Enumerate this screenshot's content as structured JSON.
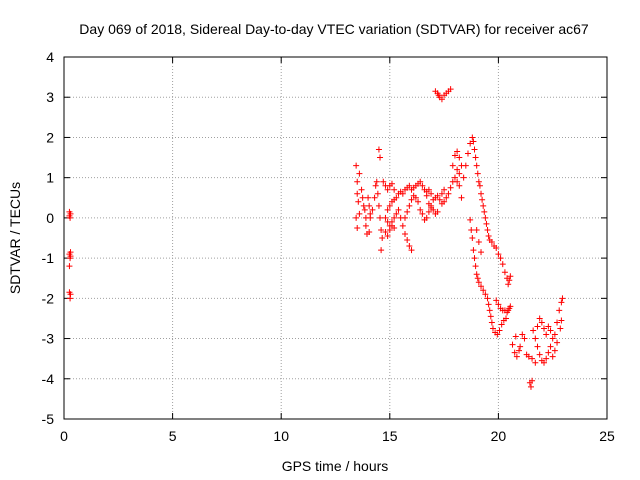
{
  "chart_data": {
    "type": "scatter",
    "title": "Day 069 of 2018, Sidereal Day-to-day VTEC variation (SDTVAR) for receiver ac67",
    "xlabel": "GPS time / hours",
    "ylabel": "SDTVAR / TECUs",
    "xlim": [
      0,
      25
    ],
    "ylim": [
      -5,
      4
    ],
    "xticks": [
      "0",
      "5",
      "10",
      "15",
      "20",
      "25"
    ],
    "yticks": [
      "-5",
      "-4",
      "-3",
      "-2",
      "-1",
      "0",
      "1",
      "2",
      "3",
      "4"
    ],
    "grid": true,
    "marker": "+",
    "color": "#ff0000",
    "series": [
      {
        "points": [
          [
            0.25,
            0.15
          ],
          [
            0.25,
            0.05
          ],
          [
            0.28,
            0.0
          ],
          [
            0.3,
            0.1
          ],
          [
            0.25,
            -0.9
          ],
          [
            0.28,
            -1.0
          ],
          [
            0.3,
            -0.85
          ],
          [
            0.25,
            -1.2
          ],
          [
            0.3,
            -0.95
          ],
          [
            0.25,
            -1.85
          ],
          [
            0.28,
            -2.0
          ],
          [
            0.3,
            -1.9
          ],
          [
            13.45,
            1.3
          ],
          [
            13.5,
            0.9
          ],
          [
            13.5,
            0.6
          ],
          [
            13.55,
            0.4
          ],
          [
            13.6,
            0.1
          ],
          [
            13.45,
            0.0
          ],
          [
            13.5,
            -0.25
          ],
          [
            13.6,
            1.1
          ],
          [
            13.7,
            0.7
          ],
          [
            13.75,
            0.5
          ],
          [
            13.8,
            0.3
          ],
          [
            13.85,
            0.2
          ],
          [
            13.9,
            0.0
          ],
          [
            13.9,
            -0.2
          ],
          [
            14.0,
            0.5
          ],
          [
            14.05,
            0.3
          ],
          [
            14.1,
            0.1
          ],
          [
            13.95,
            -0.4
          ],
          [
            14.05,
            -0.35
          ],
          [
            14.1,
            0.0
          ],
          [
            14.2,
            0.2
          ],
          [
            14.3,
            0.5
          ],
          [
            14.35,
            0.8
          ],
          [
            14.4,
            0.9
          ],
          [
            14.5,
            1.7
          ],
          [
            14.55,
            1.5
          ],
          [
            14.45,
            0.6
          ],
          [
            14.5,
            0.3
          ],
          [
            14.55,
            0.0
          ],
          [
            14.6,
            -0.3
          ],
          [
            14.6,
            -0.8
          ],
          [
            14.65,
            -0.5
          ],
          [
            14.7,
            0.9
          ],
          [
            14.8,
            0.8
          ],
          [
            14.9,
            0.7
          ],
          [
            15.0,
            0.8
          ],
          [
            15.1,
            0.85
          ],
          [
            15.2,
            0.7
          ],
          [
            14.9,
            0.2
          ],
          [
            15.0,
            0.3
          ],
          [
            15.1,
            0.4
          ],
          [
            15.2,
            0.45
          ],
          [
            15.3,
            0.5
          ],
          [
            15.4,
            0.6
          ],
          [
            15.5,
            0.65
          ],
          [
            15.6,
            0.6
          ],
          [
            15.7,
            0.7
          ],
          [
            15.8,
            0.75
          ],
          [
            15.9,
            0.8
          ],
          [
            16.0,
            0.7
          ],
          [
            16.1,
            0.75
          ],
          [
            16.2,
            0.8
          ],
          [
            16.3,
            0.85
          ],
          [
            16.4,
            0.9
          ],
          [
            16.5,
            0.8
          ],
          [
            16.6,
            0.7
          ],
          [
            16.7,
            0.65
          ],
          [
            16.8,
            0.7
          ],
          [
            16.9,
            0.6
          ],
          [
            14.8,
            0.0
          ],
          [
            14.9,
            -0.1
          ],
          [
            15.0,
            -0.2
          ],
          [
            15.1,
            -0.1
          ],
          [
            15.2,
            0.0
          ],
          [
            15.3,
            0.1
          ],
          [
            15.4,
            0.2
          ],
          [
            15.5,
            0.0
          ],
          [
            15.6,
            -0.2
          ],
          [
            15.7,
            -0.4
          ],
          [
            15.8,
            -0.55
          ],
          [
            15.9,
            -0.7
          ],
          [
            16.0,
            -0.8
          ],
          [
            14.9,
            -0.45
          ],
          [
            15.0,
            -0.3
          ],
          [
            15.1,
            -0.2
          ],
          [
            15.2,
            -0.25
          ],
          [
            14.8,
            -0.35
          ],
          [
            15.7,
            0.0
          ],
          [
            15.8,
            0.15
          ],
          [
            15.9,
            0.3
          ],
          [
            16.0,
            0.45
          ],
          [
            16.1,
            0.55
          ],
          [
            16.2,
            0.5
          ],
          [
            16.3,
            0.4
          ],
          [
            16.4,
            0.2
          ],
          [
            16.5,
            0.1
          ],
          [
            16.6,
            -0.05
          ],
          [
            16.7,
            0.0
          ],
          [
            16.8,
            0.15
          ],
          [
            16.9,
            0.3
          ],
          [
            17.0,
            0.45
          ],
          [
            17.1,
            0.5
          ],
          [
            17.2,
            0.55
          ],
          [
            17.3,
            0.45
          ],
          [
            17.4,
            0.35
          ],
          [
            17.5,
            0.4
          ],
          [
            17.6,
            0.5
          ],
          [
            17.7,
            0.6
          ],
          [
            17.8,
            0.75
          ],
          [
            17.9,
            0.9
          ],
          [
            18.0,
            1.0
          ],
          [
            18.1,
            1.2
          ],
          [
            16.7,
            0.55
          ],
          [
            16.8,
            0.35
          ],
          [
            16.9,
            0.25
          ],
          [
            17.0,
            0.2
          ],
          [
            17.1,
            0.1
          ],
          [
            17.2,
            0.15
          ],
          [
            17.4,
            0.6
          ],
          [
            17.5,
            0.7
          ],
          [
            17.1,
            3.15
          ],
          [
            17.2,
            3.1
          ],
          [
            17.3,
            3.0
          ],
          [
            17.4,
            2.95
          ],
          [
            17.5,
            3.05
          ],
          [
            17.6,
            3.1
          ],
          [
            17.7,
            3.15
          ],
          [
            17.8,
            3.2
          ],
          [
            17.25,
            3.05
          ],
          [
            17.9,
            1.3
          ],
          [
            18.0,
            1.55
          ],
          [
            18.1,
            1.65
          ],
          [
            18.2,
            1.5
          ],
          [
            18.3,
            1.3
          ],
          [
            18.1,
            0.9
          ],
          [
            18.2,
            0.8
          ],
          [
            18.3,
            0.5
          ],
          [
            18.2,
            1.1
          ],
          [
            18.4,
            1.0
          ],
          [
            18.5,
            1.3
          ],
          [
            18.6,
            1.6
          ],
          [
            18.7,
            1.85
          ],
          [
            18.8,
            2.0
          ],
          [
            18.85,
            1.9
          ],
          [
            18.9,
            1.7
          ],
          [
            18.95,
            1.5
          ],
          [
            19.0,
            1.3
          ],
          [
            19.05,
            1.1
          ],
          [
            19.1,
            0.9
          ],
          [
            19.15,
            0.8
          ],
          [
            19.2,
            0.6
          ],
          [
            19.25,
            0.45
          ],
          [
            19.3,
            0.3
          ],
          [
            19.35,
            0.15
          ],
          [
            19.4,
            0.0
          ],
          [
            19.45,
            -0.15
          ],
          [
            19.5,
            -0.3
          ],
          [
            19.55,
            -0.45
          ],
          [
            19.6,
            -0.55
          ],
          [
            19.7,
            -0.6
          ],
          [
            19.8,
            -0.7
          ],
          [
            19.9,
            -0.75
          ],
          [
            20.0,
            -0.9
          ],
          [
            20.1,
            -1.0
          ],
          [
            20.2,
            -1.15
          ],
          [
            20.3,
            -1.35
          ],
          [
            20.4,
            -1.5
          ],
          [
            20.45,
            -1.65
          ],
          [
            20.5,
            -1.55
          ],
          [
            20.55,
            -1.45
          ],
          [
            18.7,
            -0.05
          ],
          [
            18.75,
            -0.3
          ],
          [
            18.8,
            -0.5
          ],
          [
            18.85,
            -0.8
          ],
          [
            18.9,
            -1.0
          ],
          [
            18.95,
            -1.2
          ],
          [
            19.0,
            -1.4
          ],
          [
            19.05,
            -1.5
          ],
          [
            19.1,
            -1.6
          ],
          [
            19.2,
            -1.7
          ],
          [
            19.3,
            -1.8
          ],
          [
            19.4,
            -1.9
          ],
          [
            19.5,
            -2.0
          ],
          [
            19.55,
            -2.15
          ],
          [
            19.6,
            -2.3
          ],
          [
            19.65,
            -2.45
          ],
          [
            19.7,
            -2.6
          ],
          [
            19.75,
            -2.75
          ],
          [
            19.85,
            -2.85
          ],
          [
            19.95,
            -2.9
          ],
          [
            20.05,
            -2.8
          ],
          [
            20.15,
            -2.65
          ],
          [
            20.25,
            -2.55
          ],
          [
            20.35,
            -2.5
          ],
          [
            19.9,
            -2.05
          ],
          [
            20.0,
            -2.15
          ],
          [
            20.1,
            -2.25
          ],
          [
            20.2,
            -2.3
          ],
          [
            20.3,
            -2.3
          ],
          [
            20.4,
            -2.35
          ],
          [
            20.45,
            -2.3
          ],
          [
            20.5,
            -2.25
          ],
          [
            20.55,
            -2.2
          ],
          [
            19.0,
            -0.3
          ],
          [
            19.1,
            -0.6
          ],
          [
            19.2,
            -0.85
          ],
          [
            20.65,
            -3.15
          ],
          [
            20.75,
            -3.35
          ],
          [
            20.85,
            -3.45
          ],
          [
            20.95,
            -3.3
          ],
          [
            20.8,
            -2.95
          ],
          [
            21.0,
            -3.2
          ],
          [
            21.1,
            -2.9
          ],
          [
            21.2,
            -3.0
          ],
          [
            21.3,
            -3.4
          ],
          [
            21.4,
            -3.45
          ],
          [
            21.55,
            -3.5
          ],
          [
            21.7,
            -3.6
          ],
          [
            21.45,
            -4.1
          ],
          [
            21.5,
            -4.2
          ],
          [
            21.55,
            -4.05
          ],
          [
            21.6,
            -2.8
          ],
          [
            21.7,
            -3.0
          ],
          [
            21.8,
            -2.7
          ],
          [
            21.9,
            -2.5
          ],
          [
            22.0,
            -2.6
          ],
          [
            22.1,
            -2.75
          ],
          [
            21.8,
            -3.2
          ],
          [
            21.9,
            -3.4
          ],
          [
            22.0,
            -3.55
          ],
          [
            22.1,
            -3.6
          ],
          [
            22.2,
            -3.5
          ],
          [
            22.3,
            -3.35
          ],
          [
            22.4,
            -3.2
          ],
          [
            22.2,
            -2.9
          ],
          [
            22.3,
            -2.7
          ],
          [
            22.4,
            -2.8
          ],
          [
            22.5,
            -3.0
          ],
          [
            22.6,
            -2.9
          ],
          [
            22.7,
            -2.6
          ],
          [
            22.8,
            -2.3
          ],
          [
            22.9,
            -2.1
          ],
          [
            22.95,
            -2.0
          ],
          [
            22.5,
            -3.45
          ],
          [
            22.6,
            -3.3
          ],
          [
            22.7,
            -3.1
          ],
          [
            22.85,
            -2.75
          ],
          [
            22.9,
            -2.55
          ]
        ]
      }
    ]
  }
}
